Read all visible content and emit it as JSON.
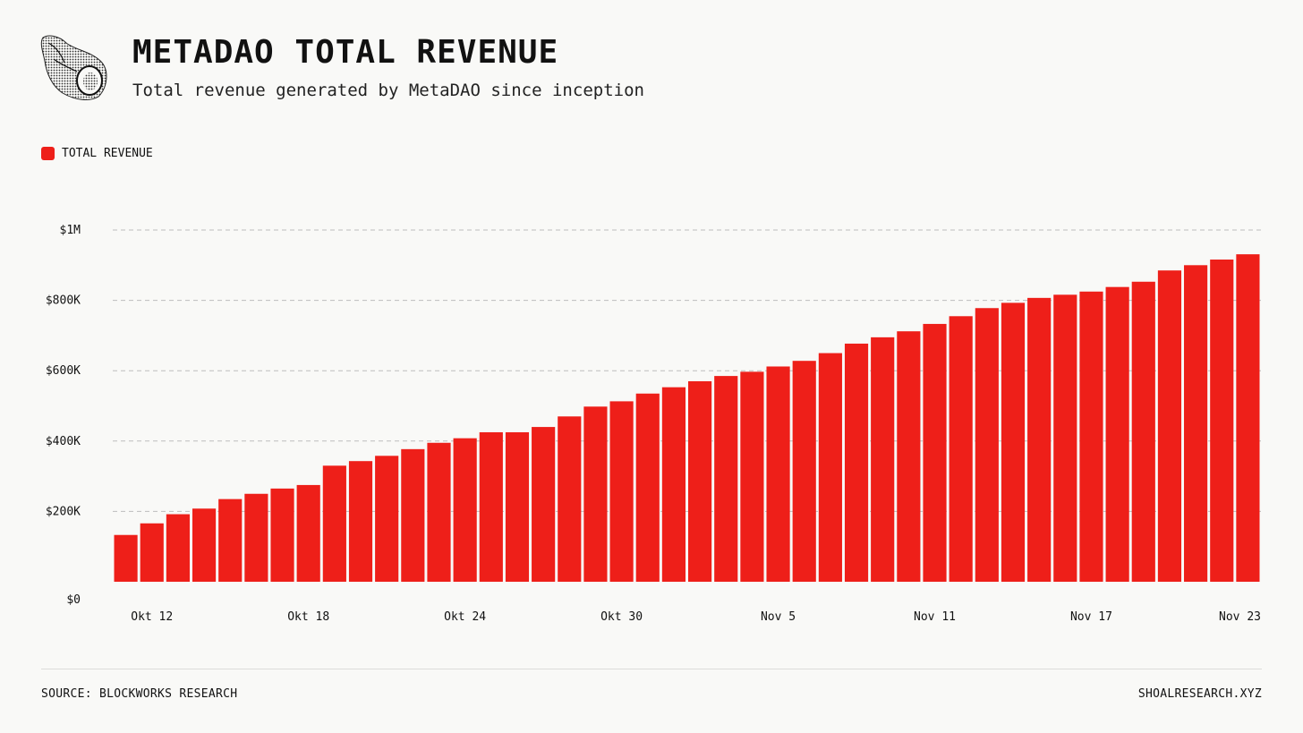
{
  "header": {
    "title": "METADAO TOTAL REVENUE",
    "subtitle": "Total revenue generated by MetaDAO since inception",
    "logo_icon": "seashell-icon"
  },
  "legend": {
    "label": "TOTAL REVENUE",
    "color": "#ee1f19"
  },
  "footer": {
    "source": "SOURCE: BLOCKWORKS RESEARCH",
    "site": "SHOALRESEARCH.XYZ"
  },
  "colors": {
    "bar": "#ee1f19",
    "grid": "#bdbdbd",
    "background": "#f9f9f7"
  },
  "chart_data": {
    "type": "bar",
    "title": "METADAO TOTAL REVENUE",
    "subtitle": "Total revenue generated by MetaDAO since inception",
    "xlabel": "",
    "ylabel": "",
    "ylim": [
      0,
      1000000
    ],
    "grid": true,
    "legend_position": "top-left",
    "y_ticks": [
      {
        "value": 0,
        "label": "$0"
      },
      {
        "value": 200000,
        "label": "$200K"
      },
      {
        "value": 400000,
        "label": "$400K"
      },
      {
        "value": 600000,
        "label": "$600K"
      },
      {
        "value": 800000,
        "label": "$800K"
      },
      {
        "value": 1000000,
        "label": "$1M"
      }
    ],
    "x_ticks": [
      {
        "index": 1,
        "label": "Okt 12"
      },
      {
        "index": 7,
        "label": "Okt 18"
      },
      {
        "index": 13,
        "label": "Okt 24"
      },
      {
        "index": 19,
        "label": "Okt 30"
      },
      {
        "index": 25,
        "label": "Nov 5"
      },
      {
        "index": 31,
        "label": "Nov 11"
      },
      {
        "index": 37,
        "label": "Nov 17"
      },
      {
        "index": 43,
        "label": "Nov 23"
      }
    ],
    "categories": [
      "Okt 11",
      "Okt 12",
      "Okt 13",
      "Okt 14",
      "Okt 15",
      "Okt 16",
      "Okt 17",
      "Okt 18",
      "Okt 19",
      "Okt 20",
      "Okt 21",
      "Okt 22",
      "Okt 23",
      "Okt 24",
      "Okt 25",
      "Okt 26",
      "Okt 27",
      "Okt 28",
      "Okt 29",
      "Okt 30",
      "Okt 31",
      "Nov 1",
      "Nov 2",
      "Nov 3",
      "Nov 4",
      "Nov 5",
      "Nov 6",
      "Nov 7",
      "Nov 8",
      "Nov 9",
      "Nov 10",
      "Nov 11",
      "Nov 12",
      "Nov 13",
      "Nov 14",
      "Nov 15",
      "Nov 16",
      "Nov 17",
      "Nov 18",
      "Nov 19",
      "Nov 20",
      "Nov 21",
      "Nov 22",
      "Nov 23"
    ],
    "series": [
      {
        "name": "TOTAL REVENUE",
        "values": [
          133000,
          166000,
          192000,
          208000,
          235000,
          250000,
          265000,
          275000,
          330000,
          343000,
          358000,
          377000,
          395000,
          408000,
          425000,
          425000,
          440000,
          470000,
          498000,
          513000,
          535000,
          553000,
          570000,
          585000,
          597000,
          612000,
          628000,
          650000,
          677000,
          695000,
          712000,
          733000,
          755000,
          778000,
          793000,
          807000,
          816000,
          825000,
          838000,
          853000,
          885000,
          900000,
          916000,
          931000
        ]
      }
    ]
  }
}
